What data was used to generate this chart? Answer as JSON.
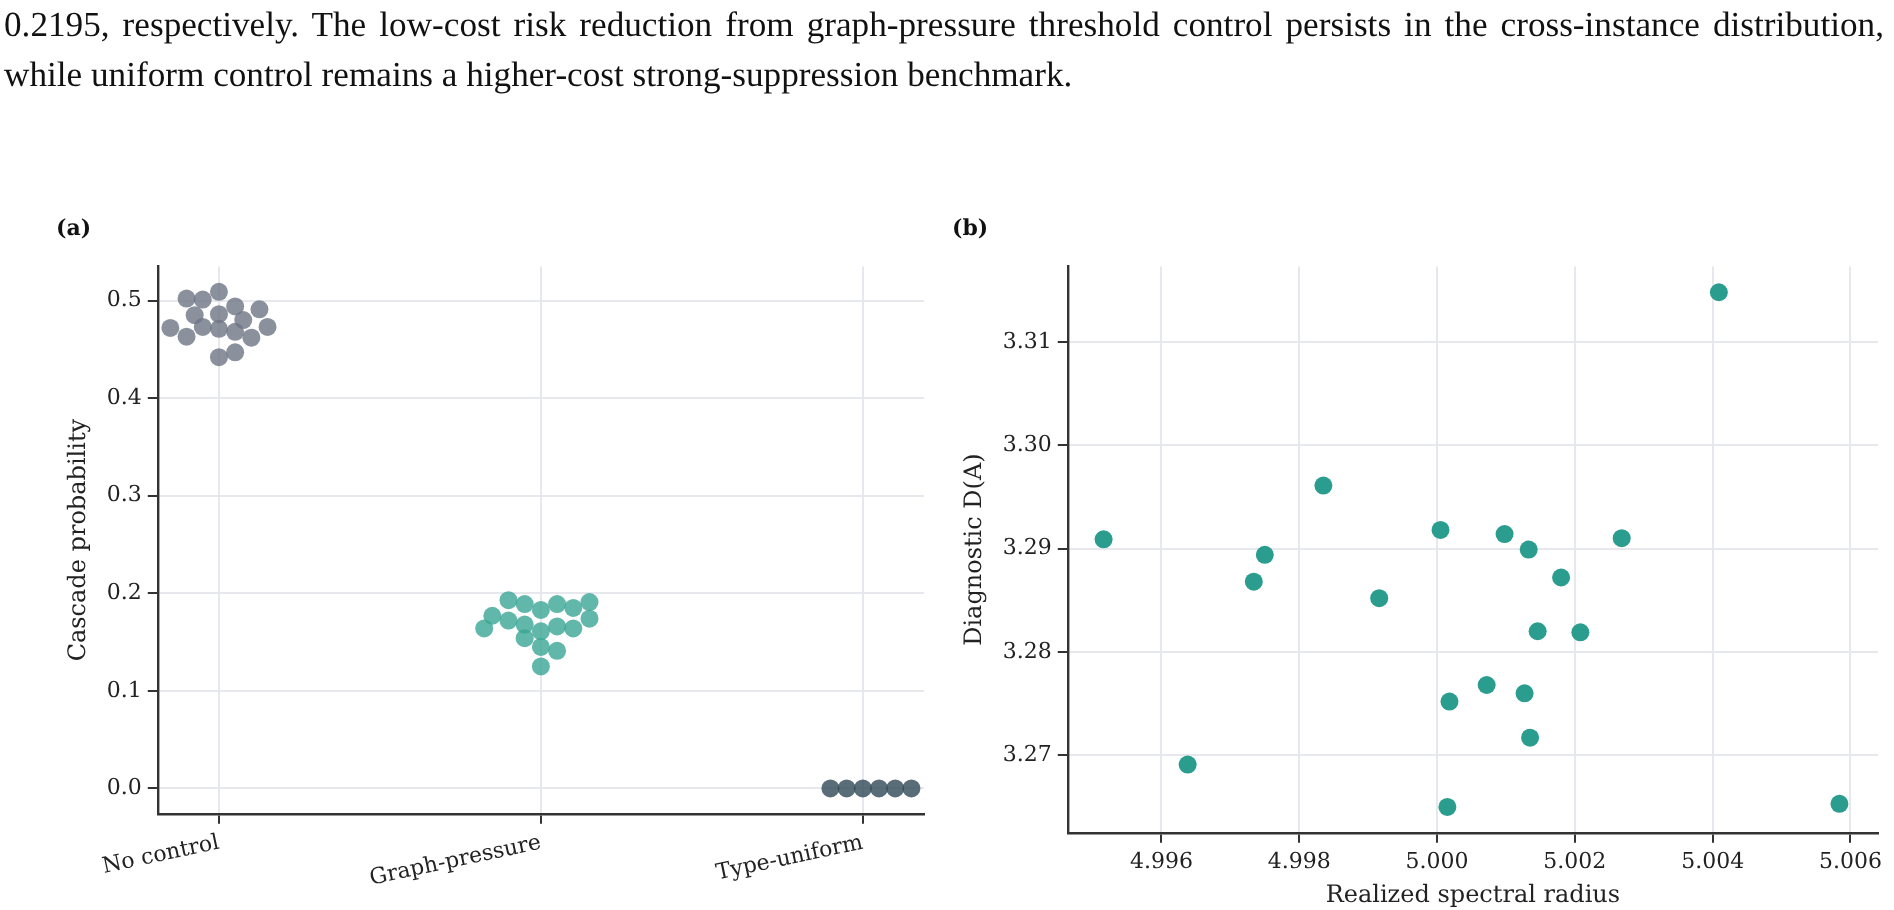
{
  "chart_data": [
    {
      "type": "scatter",
      "title": "(a)",
      "ylabel": "Cascade probability",
      "annotations": [
        "0.2195, respectively. The low-cost risk reduction from graph-pressure threshold control persists in the cross-instance distribution, while uniform control remains a higher-cost strong-suppression benchmark."
      ],
      "categories": [
        "No control",
        "Graph-pressure",
        "Type-uniform"
      ],
      "series": [
        {
          "color": "#6e7484",
          "x": [
            "No control",
            "No control",
            "No control",
            "No control",
            "No control",
            "No control",
            "No control",
            "No control",
            "No control",
            "No control",
            "No control",
            "No control",
            "No control",
            "No control",
            "No control",
            "No control",
            "No control"
          ],
          "values": [
            0.471,
            0.468,
            0.473,
            0.486,
            0.494,
            0.48,
            0.485,
            0.462,
            0.463,
            0.473,
            0.491,
            0.509,
            0.501,
            0.502,
            0.442,
            0.447,
            0.472
          ]
        },
        {
          "color": "#3aa593",
          "x": [
            "Graph-pressure",
            "Graph-pressure",
            "Graph-pressure",
            "Graph-pressure",
            "Graph-pressure",
            "Graph-pressure",
            "Graph-pressure",
            "Graph-pressure",
            "Graph-pressure",
            "Graph-pressure",
            "Graph-pressure",
            "Graph-pressure",
            "Graph-pressure",
            "Graph-pressure",
            "Graph-pressure",
            "Graph-pressure",
            "Graph-pressure",
            "Graph-pressure"
          ],
          "values": [
            0.183,
            0.189,
            0.189,
            0.185,
            0.193,
            0.191,
            0.161,
            0.166,
            0.168,
            0.164,
            0.172,
            0.174,
            0.177,
            0.164,
            0.154,
            0.145,
            0.141,
            0.125
          ]
        },
        {
          "color": "#2f4858",
          "x": [
            "Type-uniform",
            "Type-uniform",
            "Type-uniform",
            "Type-uniform",
            "Type-uniform",
            "Type-uniform"
          ],
          "values": [
            0,
            0,
            0,
            0,
            0,
            0
          ]
        }
      ],
      "ylim": [
        -0.026,
        0.535
      ],
      "yticks": [
        {
          "value": 0,
          "label": "0.0"
        },
        0.1,
        0.2,
        0.3,
        0.4,
        0.5
      ],
      "grid": true,
      "legend": false,
      "marker": "circle"
    },
    {
      "type": "scatter",
      "title": "(b)",
      "xlabel": "Realized spectral radius",
      "ylabel": "Diagnostic D(A)",
      "series": [
        {
          "color": "#2a9d8f",
          "x": [
            4.99516,
            4.99638,
            4.99734,
            4.9975,
            4.99835,
            4.99916,
            5.00005,
            5.00018,
            5.00015,
            5.00072,
            5.00098,
            5.00127,
            5.00133,
            5.00135,
            5.00146,
            5.0018,
            5.00208,
            5.00268,
            5.00409,
            5.00584
          ],
          "values": [
            3.2909,
            3.2691,
            3.2868,
            3.2894,
            3.2961,
            3.2852,
            3.2918,
            3.2752,
            3.265,
            3.2768,
            3.2914,
            3.276,
            3.2899,
            3.2717,
            3.282,
            3.2872,
            3.2819,
            3.291,
            3.3148,
            3.2653
          ]
        }
      ],
      "xlim": [
        4.99464,
        5.0064
      ],
      "xticks": [
        4.996,
        4.998,
        {
          "value": 5,
          "label": "5.000"
        },
        5.002,
        5.004,
        5.006
      ],
      "ylim": [
        3.2625,
        3.3173
      ],
      "yticks": [
        {
          "value": 3.27,
          "label": "3.27"
        },
        {
          "value": 3.28,
          "label": "3.28"
        },
        {
          "value": 3.29,
          "label": "3.29"
        },
        {
          "value": 3.3,
          "label": "3.30"
        },
        {
          "value": 3.31,
          "label": "3.31"
        }
      ],
      "grid": true,
      "legend": false,
      "marker": "circle"
    }
  ]
}
